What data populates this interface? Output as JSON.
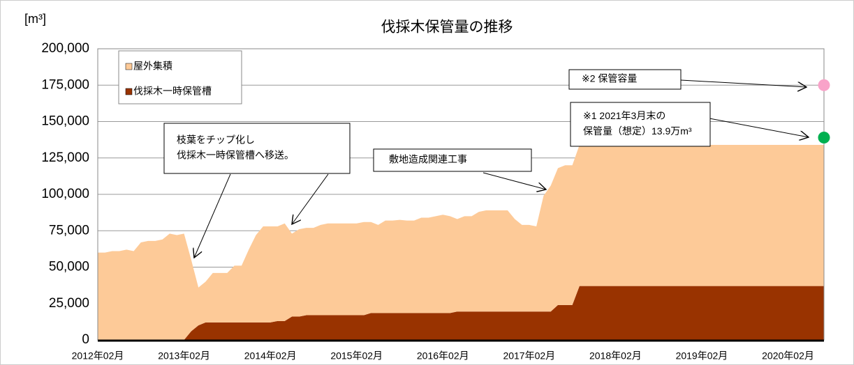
{
  "chart_data": {
    "type": "stacked_area",
    "title": "伐採木保管量の推移",
    "y_unit": "[m³]",
    "categories": [
      "2012年02月",
      null,
      null,
      null,
      null,
      null,
      null,
      null,
      null,
      null,
      null,
      null,
      "2013年02月",
      null,
      null,
      null,
      null,
      null,
      null,
      null,
      null,
      null,
      null,
      null,
      "2014年02月",
      null,
      null,
      null,
      null,
      null,
      null,
      null,
      null,
      null,
      null,
      null,
      "2015年02月",
      null,
      null,
      null,
      null,
      null,
      null,
      null,
      null,
      null,
      null,
      null,
      "2016年02月",
      null,
      null,
      null,
      null,
      null,
      null,
      null,
      null,
      null,
      null,
      null,
      "2017年02月",
      null,
      null,
      null,
      null,
      null,
      null,
      null,
      null,
      null,
      null,
      null,
      "2018年02月",
      null,
      null,
      null,
      null,
      null,
      null,
      null,
      null,
      null,
      null,
      null,
      "2019年02月",
      null,
      null,
      null,
      null,
      null,
      null,
      null,
      null,
      null,
      null,
      null,
      "2020年02月",
      null,
      null,
      null,
      null,
      null
    ],
    "series": [
      {
        "name": "屋外集積",
        "color": "#fdca98",
        "values": [
          60000,
          60000,
          61000,
          61000,
          62000,
          61000,
          67000,
          68000,
          68000,
          69000,
          73000,
          72000,
          73000,
          49000,
          26000,
          28000,
          34000,
          34000,
          34000,
          39000,
          39000,
          50000,
          60000,
          66000,
          66000,
          65000,
          67000,
          57000,
          60000,
          60000,
          60000,
          62000,
          63000,
          63000,
          63000,
          63000,
          63000,
          64000,
          62500,
          60500,
          63500,
          63500,
          64000,
          63500,
          63500,
          65500,
          65500,
          66500,
          67500,
          66500,
          63500,
          65500,
          65500,
          68500,
          69500,
          69500,
          69500,
          69500,
          63500,
          59500,
          59500,
          58500,
          79500,
          86500,
          94000,
          96000,
          96000,
          97000,
          97000,
          97000,
          97000,
          97000,
          97000,
          97000,
          97000,
          97000,
          97000,
          97000,
          97000,
          97000,
          97000,
          97000,
          97000,
          97000,
          97000,
          97000,
          97000,
          97000,
          97000,
          97000,
          97000,
          97000,
          97000,
          97000,
          97000,
          97000,
          97000,
          97000,
          97000,
          97000,
          97000,
          97000
        ]
      },
      {
        "name": "伐採木一時保管槽",
        "color": "#993300",
        "values": [
          0,
          0,
          0,
          0,
          0,
          0,
          0,
          0,
          0,
          0,
          0,
          0,
          0,
          6000,
          10000,
          12000,
          12000,
          12000,
          12000,
          12000,
          12000,
          12000,
          12000,
          12000,
          12000,
          13000,
          13000,
          16000,
          16000,
          17000,
          17000,
          17000,
          17000,
          17000,
          17000,
          17000,
          17000,
          17000,
          18500,
          18500,
          18500,
          18500,
          18500,
          18500,
          18500,
          18500,
          18500,
          18500,
          18500,
          18500,
          19500,
          19500,
          19500,
          19500,
          19500,
          19500,
          19500,
          19500,
          19500,
          19500,
          19500,
          19500,
          19500,
          19500,
          24000,
          24000,
          24000,
          37000,
          37000,
          37000,
          37000,
          37000,
          37000,
          37000,
          37000,
          37000,
          37000,
          37000,
          37000,
          37000,
          37000,
          37000,
          37000,
          37000,
          37000,
          37000,
          37000,
          37000,
          37000,
          37000,
          37000,
          37000,
          37000,
          37000,
          37000,
          37000,
          37000,
          37000,
          37000,
          37000,
          37000,
          37000
        ]
      }
    ],
    "points": [
      {
        "category": 101,
        "value": 175000,
        "color": "#f9a3c9"
      },
      {
        "category": 101,
        "value": 139000,
        "color": "#00b050"
      }
    ],
    "annotations": [
      {
        "lines": [
          "枝葉をチップ化し",
          "伐採木一時保管槽へ移送。"
        ]
      },
      {
        "lines": [
          "敷地造成関連工事"
        ]
      },
      {
        "lines": [
          "※2 保管容量"
        ]
      },
      {
        "lines": [
          "※1 2021年3月末の",
          "保管量（想定）13.9万m³"
        ]
      }
    ],
    "ylim": [
      0,
      200000
    ],
    "yticks": [
      0,
      {
        "value": 25000,
        "label": "25,000"
      },
      {
        "value": 50000,
        "label": "50,000"
      },
      {
        "value": 75000,
        "label": "75,000"
      },
      {
        "value": 100000,
        "label": "100,000"
      },
      {
        "value": 125000,
        "label": "125,000"
      },
      {
        "value": 150000,
        "label": "150,000"
      },
      {
        "value": 175000,
        "label": "175,000"
      },
      {
        "value": 200000,
        "label": "200,000"
      }
    ],
    "grid": true,
    "legend": "upper left"
  }
}
